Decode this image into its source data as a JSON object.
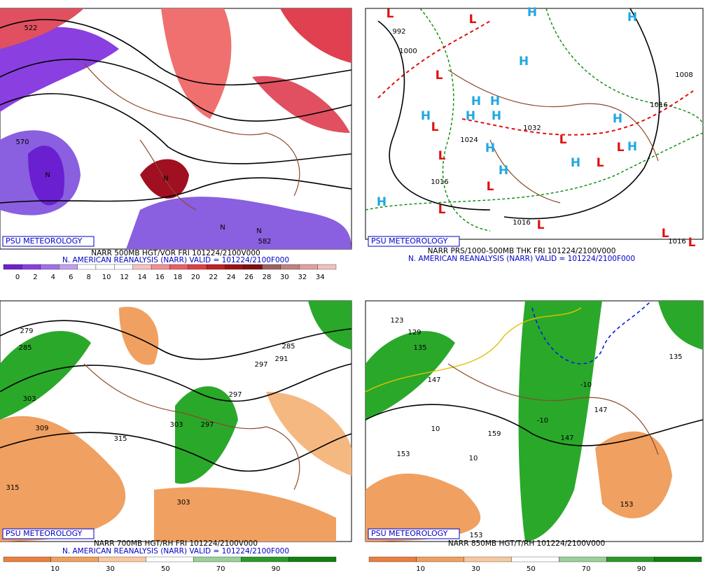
{
  "panels": [
    {
      "badge": "PSU METEOROLOGY",
      "caption": "NARR 500MB HGT/VOR FRI 101224/2100V000",
      "subcaption": "N. AMERICAN REANALYSIS (NARR) VALID = 101224/2100F000",
      "labels": [
        "522",
        "570",
        "582",
        "N",
        "N",
        "N",
        "N"
      ],
      "colorbar": [
        "0",
        "2",
        "4",
        "6",
        "8",
        "10",
        "12",
        "14",
        "16",
        "18",
        "20",
        "22",
        "24",
        "26",
        "28",
        "30",
        "32",
        "34"
      ]
    },
    {
      "badge": "PSU METEOROLOGY",
      "caption": "NARR PRS/1000-500MB THK FRI 101224/2100V000",
      "subcaption": "N. AMERICAN REANALYSIS (NARR) VALID = 101224/2100F000",
      "labels": [
        "992",
        "1000",
        "1008",
        "1016",
        "1024",
        "1032",
        "1016",
        "1016",
        "1016"
      ],
      "highs": [
        "H",
        "H",
        "H",
        "H",
        "H",
        "H",
        "H",
        "H",
        "H",
        "H",
        "H",
        "H",
        "H",
        "H"
      ],
      "lows": [
        "L",
        "L",
        "L",
        "L",
        "L",
        "L",
        "L",
        "L",
        "L",
        "L",
        "L",
        "L",
        "L"
      ]
    },
    {
      "badge": "PSU METEOROLOGY",
      "caption": "NARR 700MB HGT/RH FRI 101224/2100V000",
      "subcaption": "N. AMERICAN REANALYSIS (NARR) VALID = 101224/2100F000",
      "labels": [
        "279",
        "285",
        "303",
        "309",
        "315",
        "315",
        "303",
        "297",
        "297",
        "291",
        "285",
        "303",
        "297"
      ],
      "colorbar": [
        "10",
        "30",
        "50",
        "70",
        "90"
      ]
    },
    {
      "badge": "PSU METEOROLOGY",
      "caption": "NARR 850MB HGT/T/RH 101224/2100V000",
      "labels": [
        "123",
        "129",
        "135",
        "147",
        "153",
        "159",
        "147",
        "147",
        "153",
        "135",
        "-10",
        "-10",
        "10",
        "10",
        "153"
      ],
      "colorbar": [
        "10",
        "30",
        "50",
        "70",
        "90"
      ]
    }
  ]
}
